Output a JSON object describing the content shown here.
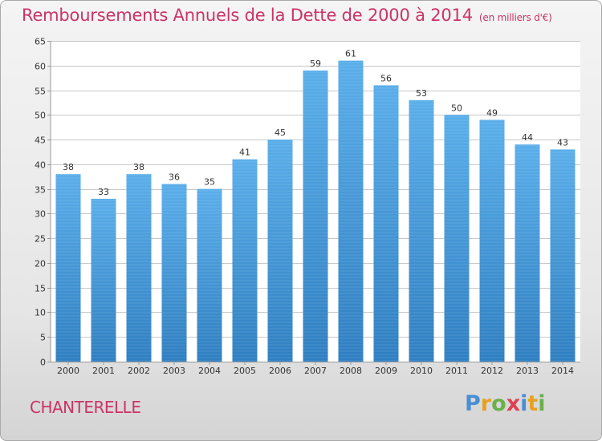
{
  "title": "Remboursements Annuels de la Dette de 2000 à 2014",
  "subtitle": "(en milliers d'€)",
  "place_name": "CHANTERELLE",
  "logo": {
    "text": "Proxiti",
    "letters": [
      {
        "ch": "P",
        "color": "#4a8fd4"
      },
      {
        "ch": "r",
        "color": "#e8a020"
      },
      {
        "ch": "o",
        "color": "#6ab04c"
      },
      {
        "ch": "x",
        "color": "#e04050"
      },
      {
        "ch": "i",
        "color": "#4a8fd4"
      },
      {
        "ch": "t",
        "color": "#e8a020"
      },
      {
        "ch": "i",
        "color": "#6ab04c"
      }
    ]
  },
  "colors": {
    "title": "#cc3366",
    "bar_top": "#5aaeea",
    "bar_bottom": "#2f7fc1",
    "grid": "#c8c8c8"
  },
  "chart_data": {
    "type": "bar",
    "categories": [
      "2000",
      "2001",
      "2002",
      "2003",
      "2004",
      "2005",
      "2006",
      "2007",
      "2008",
      "2009",
      "2010",
      "2011",
      "2012",
      "2013",
      "2014"
    ],
    "values": [
      38,
      33,
      38,
      36,
      35,
      41,
      45,
      59,
      61,
      56,
      53,
      50,
      49,
      44,
      43
    ],
    "ylim": [
      0,
      65
    ],
    "yticks": [
      0,
      5,
      10,
      15,
      20,
      25,
      30,
      35,
      40,
      45,
      50,
      55,
      60,
      65
    ],
    "grid": true,
    "xlabel": "",
    "ylabel": ""
  }
}
